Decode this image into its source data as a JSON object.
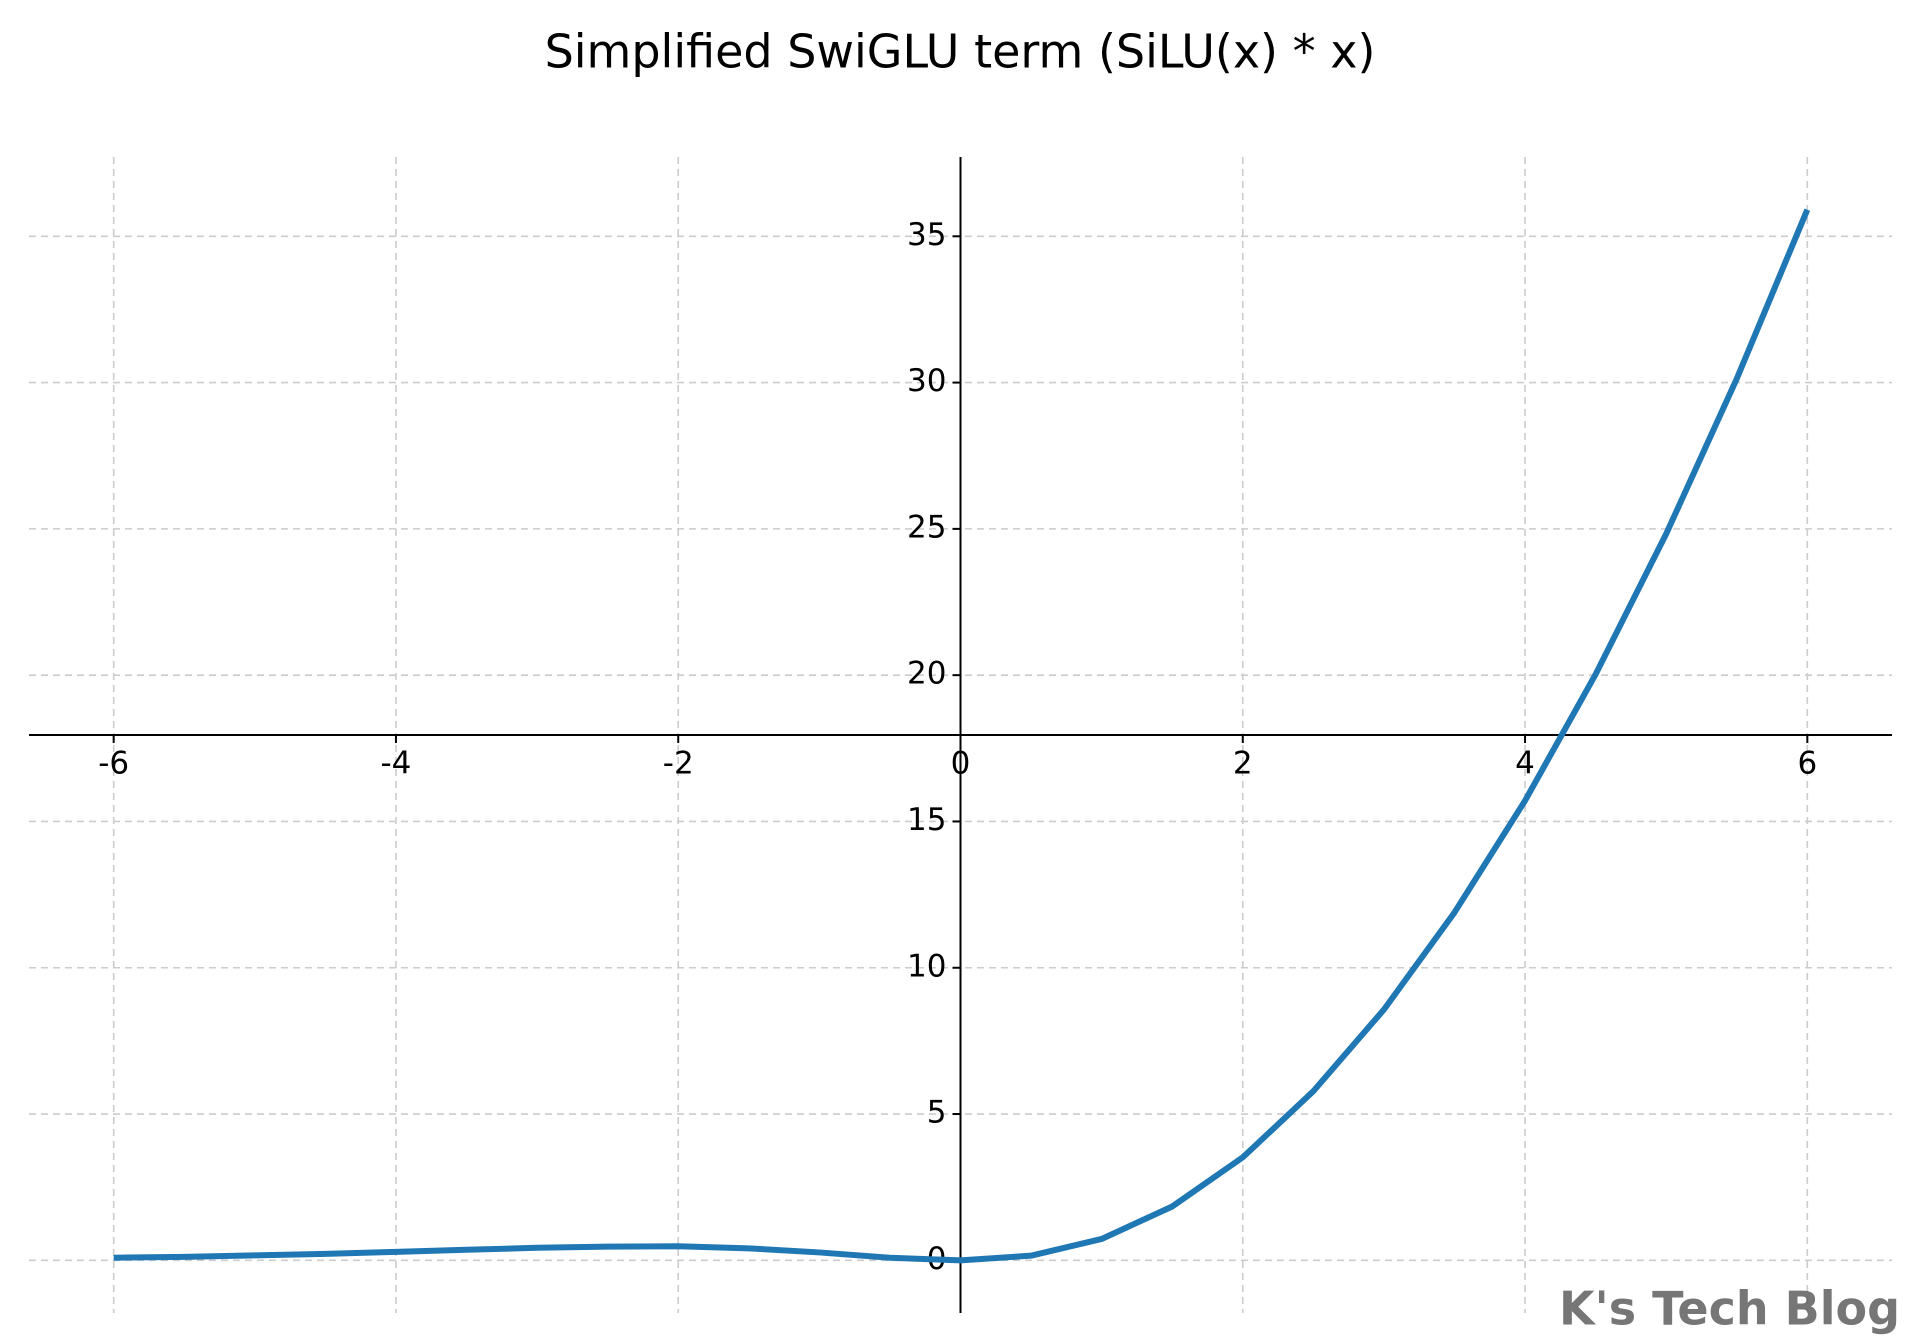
{
  "chart_data": {
    "type": "line",
    "title": "Simplified SwiGLU term (SiLU(x) * x)",
    "x": [
      -6,
      -5.5,
      -5,
      -4.5,
      -4,
      -3.5,
      -3,
      -2.5,
      -2,
      -1.5,
      -1,
      -0.5,
      0,
      0.5,
      1,
      1.5,
      2,
      2.5,
      3,
      3.5,
      4,
      4.5,
      5,
      5.5,
      6
    ],
    "series": [
      {
        "color": "#1f77b4",
        "values": [
          0.09,
          0.12,
          0.17,
          0.22,
          0.29,
          0.36,
          0.43,
          0.47,
          0.48,
          0.41,
          0.27,
          0.09,
          0,
          0.16,
          0.73,
          1.84,
          3.52,
          5.78,
          8.57,
          11.89,
          15.71,
          20.03,
          24.83,
          30.13,
          35.91
        ]
      }
    ],
    "xlim": [
      -6.6,
      6.6
    ],
    "ylim": [
      -1.8,
      37.71
    ],
    "xticks": [
      -6,
      -4,
      -2,
      0,
      2,
      4,
      6
    ],
    "yticks": [
      0,
      5,
      10,
      15,
      20,
      25,
      30,
      35
    ],
    "grid": true,
    "watermark": "K's Tech Blog"
  }
}
